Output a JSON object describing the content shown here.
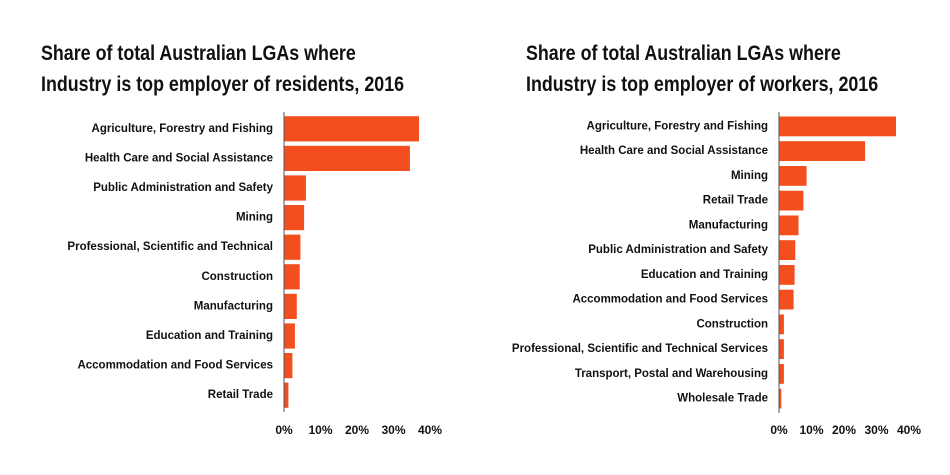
{
  "chart_data": [
    {
      "type": "bar",
      "orientation": "horizontal",
      "title": "Share of total Australian LGAs where Industry is top employer of residents, 2016",
      "title_lines": [
        "Share of total Australian LGAs where",
        "Industry is top employer of residents, 2016"
      ],
      "categories": [
        "Agriculture, Forestry and Fishing",
        "Health Care and Social Assistance",
        "Public Administration and Safety",
        "Mining",
        "Professional, Scientific and Technical",
        "Construction",
        "Manufacturing",
        "Education and Training",
        "Accommodation and Food Services",
        "Retail Trade"
      ],
      "values": [
        37,
        34.5,
        6,
        5.5,
        4.5,
        4.3,
        3.5,
        3,
        2.3,
        1.2
      ],
      "xlim": [
        0,
        40
      ],
      "xticks": [
        "0%",
        "10%",
        "20%",
        "30%",
        "40%"
      ],
      "bar_color": "#f24e1e",
      "grid": false
    },
    {
      "type": "bar",
      "orientation": "horizontal",
      "title": "Share of total Australian LGAs where Industry is top employer of workers, 2016",
      "title_lines": [
        "Share of total Australian LGAs where",
        "Industry is top employer of workers, 2016"
      ],
      "categories": [
        "Agriculture, Forestry and Fishing",
        "Health Care and Social Assistance",
        "Mining",
        "Retail Trade",
        "Manufacturing",
        "Public Administration and Safety",
        "Education and Training",
        "Accommodation and Food Services",
        "Construction",
        "Professional, Scientific and Technical Services",
        "Transport, Postal and Warehousing",
        "Wholesale Trade"
      ],
      "values": [
        36,
        26.5,
        8.5,
        7.5,
        6,
        5,
        4.8,
        4.5,
        1.5,
        1.5,
        1.5,
        0.7
      ],
      "xlim": [
        0,
        40
      ],
      "xticks": [
        "0%",
        "10%",
        "20%",
        "30%",
        "40%"
      ],
      "bar_color": "#f24e1e",
      "grid": false
    }
  ]
}
